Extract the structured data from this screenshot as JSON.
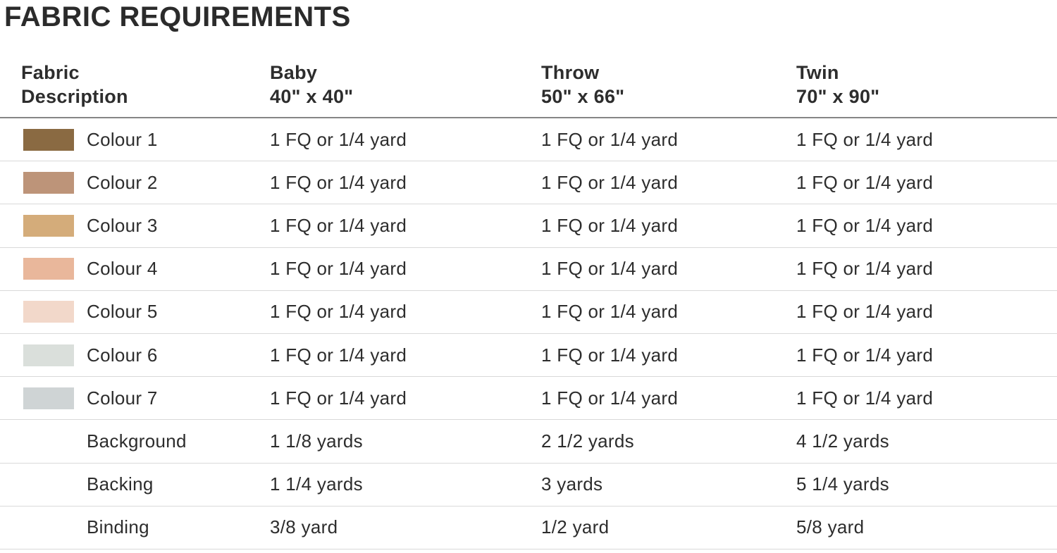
{
  "page_title": "FABRIC REQUIREMENTS",
  "text_color": "#2d2d2d",
  "header_border_color": "#868686",
  "row_border_color": "#d9d9d9",
  "table": {
    "columns": [
      {
        "label": "Fabric",
        "sublabel": "Description"
      },
      {
        "label": "Baby",
        "sublabel": "40\" x 40\""
      },
      {
        "label": "Throw",
        "sublabel": "50\" x 66\""
      },
      {
        "label": "Twin",
        "sublabel": "70\" x 90\""
      }
    ],
    "rows": [
      {
        "swatch": "#8a6a42",
        "label": "Colour 1",
        "baby": "1 FQ or 1/4 yard",
        "throw": "1 FQ or 1/4 yard",
        "twin": "1 FQ or 1/4 yard"
      },
      {
        "swatch": "#bd9479",
        "label": "Colour 2",
        "baby": "1 FQ or 1/4 yard",
        "throw": "1 FQ or 1/4 yard",
        "twin": "1 FQ or 1/4 yard"
      },
      {
        "swatch": "#d4ac7a",
        "label": "Colour 3",
        "baby": "1 FQ or 1/4 yard",
        "throw": "1 FQ or 1/4 yard",
        "twin": "1 FQ or 1/4 yard"
      },
      {
        "swatch": "#e9b79b",
        "label": "Colour 4",
        "baby": "1 FQ or 1/4 yard",
        "throw": "1 FQ or 1/4 yard",
        "twin": "1 FQ or 1/4 yard"
      },
      {
        "swatch": "#f2d8ca",
        "label": "Colour 5",
        "baby": "1 FQ or 1/4 yard",
        "throw": "1 FQ or 1/4 yard",
        "twin": "1 FQ or 1/4 yard"
      },
      {
        "swatch": "#dadfdb",
        "label": "Colour 6",
        "baby": "1 FQ or 1/4 yard",
        "throw": "1 FQ or 1/4 yard",
        "twin": "1 FQ or 1/4 yard"
      },
      {
        "swatch": "#cfd4d5",
        "label": "Colour 7",
        "baby": "1 FQ or 1/4 yard",
        "throw": "1 FQ or 1/4 yard",
        "twin": "1 FQ or 1/4 yard"
      },
      {
        "swatch": null,
        "label": "Background",
        "baby": "1 1/8 yards",
        "throw": "2 1/2 yards",
        "twin": "4 1/2 yards"
      },
      {
        "swatch": null,
        "label": "Backing",
        "baby": "1 1/4 yards",
        "throw": "3 yards",
        "twin": "5 1/4 yards"
      },
      {
        "swatch": null,
        "label": "Binding",
        "baby": "3/8 yard",
        "throw": "1/2 yard",
        "twin": "5/8 yard"
      }
    ]
  }
}
